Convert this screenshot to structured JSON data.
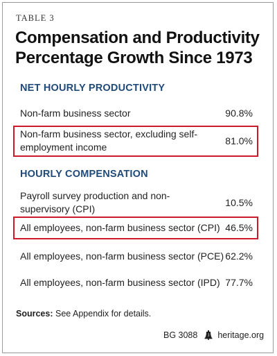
{
  "table_label": "TABLE 3",
  "title_line1": "Compensation and Productivity",
  "title_line2": "Percentage Growth Since 1973",
  "sections": [
    {
      "heading": "NET HOURLY PRODUCTIVITY",
      "rows": [
        {
          "label": "Non-farm business sector",
          "value": "90.8%",
          "highlighted": false
        },
        {
          "label": "Non-farm business sector, excluding self-employment income",
          "value": "81.0%",
          "highlighted": true
        }
      ]
    },
    {
      "heading": "HOURLY COMPENSATION",
      "rows": [
        {
          "label": "Payroll survey production and non-supervisory (CPI)",
          "value": "10.5%",
          "highlighted": false
        },
        {
          "label": "All employees, non-farm business sector (CPI)",
          "value": "46.5%",
          "highlighted": true
        },
        {
          "label": "All employees, non-farm business sector (PCE)",
          "value": "62.2%",
          "highlighted": false
        },
        {
          "label": "All employees, non-farm business sector (IPD)",
          "value": "77.7%",
          "highlighted": false
        }
      ]
    }
  ],
  "sources_label": "Sources:",
  "sources_text": "See Appendix for details.",
  "footer_code": "BG 3088",
  "footer_site": "heritage.org",
  "colors": {
    "heading": "#1f4a79",
    "highlight_border": "#cc1a2a",
    "frame": "#9a9a9a"
  },
  "icons": {
    "footer_logo": "liberty-bell-icon"
  }
}
